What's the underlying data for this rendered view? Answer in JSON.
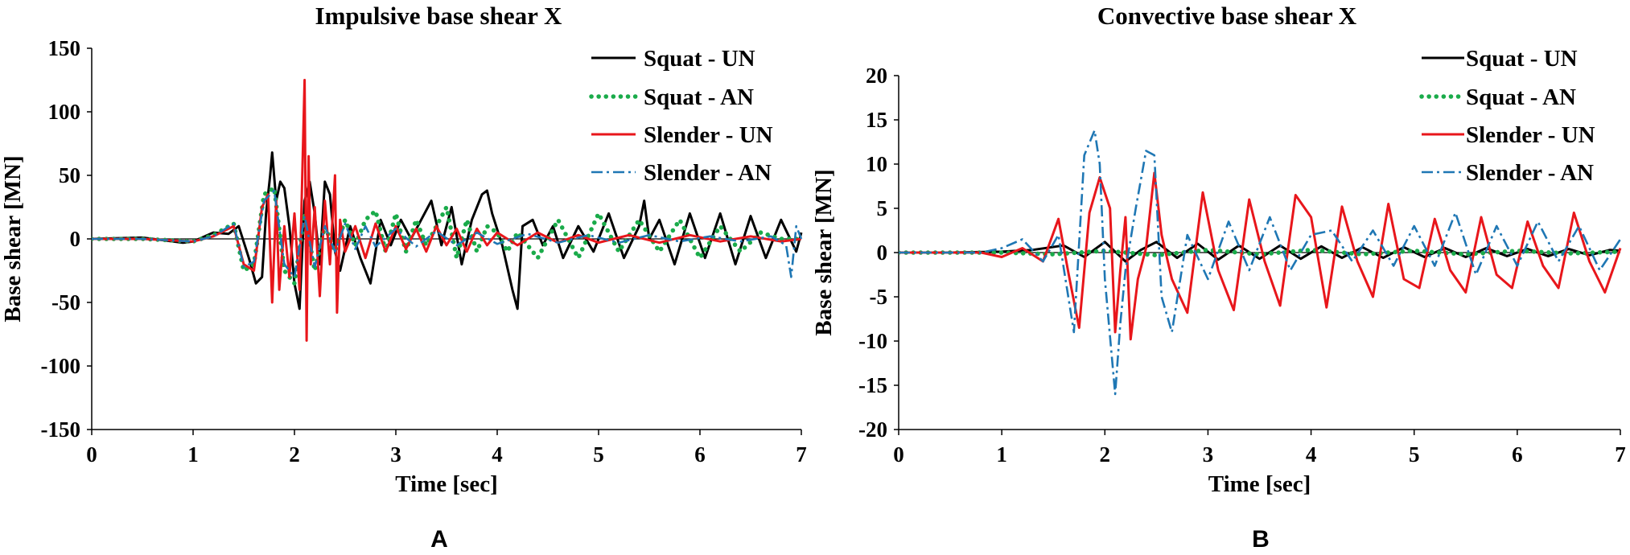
{
  "colors": {
    "squat_un": "#000000",
    "squat_an": "#1aab4a",
    "slender_un": "#e8161b",
    "slender_an": "#1f77b4"
  },
  "chart_data": [
    {
      "panel_label": "A",
      "type": "line",
      "title": "Impulsive base shear X",
      "xlabel": "Time  [sec]",
      "ylabel": "Base shear [MN]",
      "xlim": [
        0,
        7
      ],
      "ylim": [
        -150,
        150
      ],
      "xticks": [
        0,
        1,
        2,
        3,
        4,
        5,
        6,
        7
      ],
      "yticks": [
        -150,
        -100,
        -50,
        0,
        50,
        100,
        150
      ],
      "grid": false,
      "legend": "top-right",
      "series": [
        {
          "name": "Squat - UN",
          "style": "solid",
          "color": "#000000",
          "x": [
            0,
            0.5,
            0.9,
            1.0,
            1.2,
            1.35,
            1.45,
            1.55,
            1.62,
            1.68,
            1.72,
            1.76,
            1.78,
            1.82,
            1.86,
            1.9,
            1.95,
            2.0,
            2.05,
            2.1,
            2.15,
            2.2,
            2.25,
            2.3,
            2.35,
            2.4,
            2.45,
            2.55,
            2.65,
            2.75,
            2.85,
            2.95,
            3.05,
            3.15,
            3.25,
            3.35,
            3.45,
            3.55,
            3.65,
            3.75,
            3.85,
            3.9,
            3.95,
            4.05,
            4.15,
            4.2,
            4.25,
            4.35,
            4.45,
            4.55,
            4.65,
            4.8,
            4.95,
            5.1,
            5.25,
            5.4,
            5.45,
            5.5,
            5.6,
            5.75,
            5.9,
            6.05,
            6.2,
            6.35,
            6.5,
            6.65,
            6.8,
            6.95,
            7.0
          ],
          "y": [
            0,
            1,
            -3,
            -2,
            5,
            4,
            10,
            -15,
            -35,
            -30,
            20,
            50,
            68,
            30,
            45,
            40,
            10,
            -35,
            -55,
            30,
            45,
            20,
            -20,
            45,
            35,
            -10,
            -25,
            10,
            -15,
            -35,
            15,
            -5,
            15,
            0,
            15,
            30,
            -5,
            25,
            -20,
            15,
            35,
            38,
            20,
            -5,
            -40,
            -55,
            10,
            15,
            -5,
            10,
            -15,
            10,
            -10,
            20,
            -15,
            10,
            30,
            0,
            15,
            -20,
            20,
            -15,
            20,
            -20,
            18,
            -15,
            15,
            -10,
            5
          ]
        },
        {
          "name": "Squat - AN",
          "style": "dotted",
          "color": "#1aab4a",
          "x": [
            0,
            0.5,
            1.0,
            1.2,
            1.4,
            1.5,
            1.6,
            1.7,
            1.8,
            1.9,
            2.0,
            2.1,
            2.2,
            2.3,
            2.4,
            2.5,
            2.6,
            2.7,
            2.8,
            2.9,
            3.0,
            3.1,
            3.2,
            3.3,
            3.4,
            3.5,
            3.6,
            3.7,
            3.8,
            3.9,
            4.0,
            4.1,
            4.2,
            4.4,
            4.6,
            4.8,
            5.0,
            5.2,
            5.4,
            5.6,
            5.8,
            6.0,
            6.2,
            6.4,
            6.6,
            6.8,
            7.0
          ],
          "y": [
            0,
            0,
            -2,
            3,
            12,
            -25,
            -20,
            35,
            40,
            -25,
            -35,
            20,
            -25,
            10,
            -10,
            15,
            -5,
            15,
            22,
            -10,
            20,
            -10,
            15,
            -5,
            10,
            25,
            -15,
            15,
            -10,
            10,
            5,
            -10,
            5,
            -15,
            15,
            -15,
            20,
            -10,
            15,
            -10,
            15,
            -15,
            10,
            -10,
            5,
            0,
            0
          ]
        },
        {
          "name": "Slender - UN",
          "style": "solid",
          "color": "#e8161b",
          "x": [
            0,
            0.5,
            1.0,
            1.2,
            1.4,
            1.5,
            1.6,
            1.68,
            1.74,
            1.78,
            1.82,
            1.85,
            1.9,
            1.95,
            2.0,
            2.05,
            2.08,
            2.1,
            2.12,
            2.14,
            2.16,
            2.2,
            2.25,
            2.3,
            2.35,
            2.4,
            2.42,
            2.45,
            2.5,
            2.6,
            2.7,
            2.8,
            2.9,
            3.0,
            3.1,
            3.2,
            3.3,
            3.4,
            3.5,
            3.6,
            3.7,
            3.8,
            3.9,
            4.0,
            4.2,
            4.4,
            4.6,
            4.8,
            5.0,
            5.3,
            5.6,
            5.9,
            6.2,
            6.5,
            6.8,
            7.0
          ],
          "y": [
            0,
            0,
            -2,
            2,
            10,
            -20,
            -25,
            25,
            35,
            -50,
            30,
            -40,
            10,
            -30,
            20,
            -40,
            60,
            125,
            -80,
            65,
            -20,
            25,
            -45,
            30,
            -20,
            50,
            -58,
            15,
            -10,
            10,
            -15,
            12,
            -10,
            10,
            -8,
            8,
            -10,
            10,
            -5,
            8,
            -10,
            8,
            -5,
            5,
            -5,
            5,
            -3,
            3,
            -3,
            3,
            -3,
            3,
            -2,
            2,
            -2,
            0
          ]
        },
        {
          "name": "Slender - AN",
          "style": "dashdot",
          "color": "#1f77b4",
          "x": [
            0,
            0.5,
            1.0,
            1.2,
            1.4,
            1.5,
            1.6,
            1.7,
            1.8,
            1.9,
            2.0,
            2.1,
            2.2,
            2.3,
            2.4,
            2.5,
            2.6,
            2.7,
            2.8,
            3.0,
            3.2,
            3.4,
            3.6,
            3.8,
            4.0,
            4.3,
            4.6,
            4.9,
            5.2,
            5.5,
            5.8,
            6.1,
            6.4,
            6.7,
            6.85,
            6.9,
            6.95,
            7.0
          ],
          "y": [
            0,
            0,
            -2,
            2,
            12,
            -22,
            -18,
            30,
            38,
            -20,
            -30,
            18,
            -22,
            10,
            -10,
            12,
            -8,
            10,
            -6,
            8,
            -6,
            6,
            -5,
            5,
            -4,
            4,
            -3,
            3,
            -3,
            3,
            -2,
            2,
            -2,
            2,
            -5,
            -30,
            10,
            0
          ]
        }
      ]
    },
    {
      "panel_label": "B",
      "type": "line",
      "title": "Convective base shear X",
      "xlabel": "Time  [sec]",
      "ylabel": "Base shear [MN]",
      "xlim": [
        0,
        7
      ],
      "ylim": [
        -20,
        20
      ],
      "xticks": [
        0,
        1,
        2,
        3,
        4,
        5,
        6,
        7
      ],
      "yticks": [
        -20,
        -15,
        -10,
        -5,
        0,
        5,
        10,
        15,
        20
      ],
      "grid": false,
      "legend": "top-right",
      "series": [
        {
          "name": "Squat - UN",
          "style": "solid",
          "color": "#000000",
          "x": [
            0,
            0.5,
            1.0,
            1.3,
            1.6,
            1.8,
            2.0,
            2.2,
            2.35,
            2.5,
            2.7,
            2.9,
            3.1,
            3.3,
            3.5,
            3.7,
            3.9,
            4.1,
            4.3,
            4.5,
            4.7,
            4.9,
            5.1,
            5.3,
            5.5,
            5.7,
            5.9,
            6.1,
            6.3,
            6.5,
            6.7,
            6.9,
            7.0
          ],
          "y": [
            0,
            0,
            0.1,
            0.3,
            0.8,
            -0.5,
            1.2,
            -1.0,
            0.3,
            1.2,
            -0.6,
            1.0,
            -0.8,
            0.8,
            -0.7,
            0.8,
            -0.7,
            0.7,
            -0.6,
            0.6,
            -0.6,
            0.6,
            -0.5,
            0.5,
            -0.5,
            0.5,
            -0.4,
            0.4,
            -0.4,
            0.4,
            -0.3,
            0.3,
            0.2
          ]
        },
        {
          "name": "Squat - AN",
          "style": "dotted",
          "color": "#1aab4a",
          "x": [
            0,
            1.0,
            1.5,
            2.0,
            2.5,
            3.0,
            3.5,
            4.0,
            4.5,
            5.0,
            5.5,
            6.0,
            6.5,
            7.0
          ],
          "y": [
            0,
            0,
            -0.2,
            0.2,
            -0.3,
            0.3,
            -0.2,
            0.3,
            -0.2,
            0.2,
            -0.2,
            0.2,
            -0.1,
            0.1
          ]
        },
        {
          "name": "Slender - UN",
          "style": "solid",
          "color": "#e8161b",
          "x": [
            0,
            0.8,
            1.0,
            1.2,
            1.4,
            1.55,
            1.65,
            1.75,
            1.85,
            1.95,
            2.05,
            2.1,
            2.15,
            2.2,
            2.25,
            2.32,
            2.4,
            2.48,
            2.55,
            2.65,
            2.8,
            2.95,
            3.1,
            3.25,
            3.4,
            3.55,
            3.7,
            3.85,
            4.0,
            4.15,
            4.3,
            4.45,
            4.6,
            4.75,
            4.9,
            5.05,
            5.2,
            5.35,
            5.5,
            5.65,
            5.8,
            5.95,
            6.1,
            6.25,
            6.4,
            6.55,
            6.7,
            6.85,
            7.0
          ],
          "y": [
            0,
            0,
            -0.5,
            0.5,
            -1.0,
            3.8,
            -2.5,
            -8.5,
            4.5,
            8.5,
            5.0,
            -9.0,
            -2.0,
            4.0,
            -9.8,
            -3.0,
            0.5,
            9.0,
            2.0,
            -3.0,
            -6.8,
            6.8,
            -2.0,
            -6.5,
            6.0,
            -1.0,
            -6.0,
            6.5,
            4.0,
            -6.2,
            5.2,
            -1.0,
            -5.0,
            5.5,
            -3.0,
            -4.0,
            3.8,
            -2.0,
            -4.5,
            4.0,
            -2.5,
            -4.0,
            3.5,
            -1.5,
            -4.0,
            4.5,
            -1.0,
            -4.5,
            0.5
          ]
        },
        {
          "name": "Slender - AN",
          "style": "dashdot",
          "color": "#1f77b4",
          "x": [
            0,
            0.8,
            1.0,
            1.2,
            1.4,
            1.55,
            1.7,
            1.8,
            1.9,
            1.95,
            2.0,
            2.1,
            2.15,
            2.2,
            2.3,
            2.4,
            2.48,
            2.55,
            2.65,
            2.8,
            3.0,
            3.2,
            3.4,
            3.6,
            3.8,
            4.0,
            4.2,
            4.4,
            4.6,
            4.8,
            5.0,
            5.2,
            5.4,
            5.6,
            5.8,
            6.0,
            6.2,
            6.4,
            6.6,
            6.8,
            7.0
          ],
          "y": [
            0,
            0,
            0.5,
            1.5,
            -1.0,
            2.0,
            -9.0,
            11.0,
            13.8,
            10.0,
            -3.0,
            -16.0,
            -8.0,
            -2.0,
            5.0,
            11.5,
            11.0,
            -5.0,
            -9.0,
            2.0,
            -3.0,
            3.5,
            -2.0,
            4.0,
            -2.0,
            2.0,
            2.5,
            -1.0,
            2.5,
            -1.5,
            3.0,
            -1.5,
            4.5,
            -2.5,
            3.0,
            -1.5,
            3.5,
            -1.0,
            3.0,
            -2.0,
            1.5
          ]
        }
      ]
    }
  ]
}
